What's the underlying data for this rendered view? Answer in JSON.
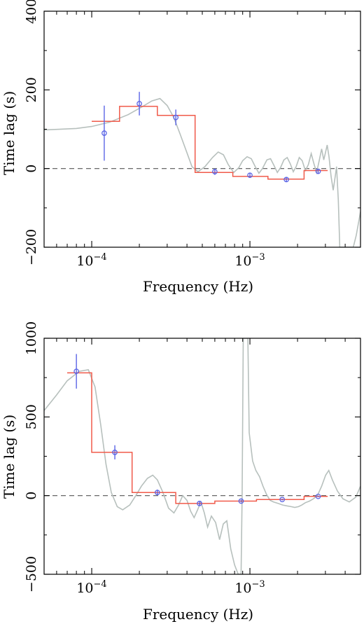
{
  "chart_data": [
    {
      "type": "line",
      "xlabel": "Frequency (Hz)",
      "ylabel": "Time lag (s)",
      "xscale": "log",
      "xlim": [
        5e-05,
        0.005
      ],
      "ylim": [
        -200,
        400
      ],
      "xticks": [
        {
          "value": 0.0001,
          "base": "10",
          "exp": "−4"
        },
        {
          "value": 0.001,
          "base": "10",
          "exp": "−3"
        }
      ],
      "yticks": [
        {
          "value": -200,
          "label": "−200"
        },
        {
          "value": 0,
          "label": "0"
        },
        {
          "value": 200,
          "label": "200"
        },
        {
          "value": 400,
          "label": "400"
        }
      ],
      "zero_line": true,
      "colors": {
        "model": "#b7c0bd",
        "step": "#f05a4a",
        "data": "#5a64e6",
        "zero": "#555555"
      },
      "model_curve": [
        {
          "x": 5e-05,
          "y": 98
        },
        {
          "x": 8e-05,
          "y": 102
        },
        {
          "x": 0.0001,
          "y": 107
        },
        {
          "x": 0.00013,
          "y": 118
        },
        {
          "x": 0.00017,
          "y": 137
        },
        {
          "x": 0.00021,
          "y": 158
        },
        {
          "x": 0.00024,
          "y": 172
        },
        {
          "x": 0.00027,
          "y": 178
        },
        {
          "x": 0.0003,
          "y": 160
        },
        {
          "x": 0.00033,
          "y": 130
        },
        {
          "x": 0.00036,
          "y": 90
        },
        {
          "x": 0.0004,
          "y": 40
        },
        {
          "x": 0.00043,
          "y": 5
        },
        {
          "x": 0.00047,
          "y": -8
        },
        {
          "x": 0.00052,
          "y": 5
        },
        {
          "x": 0.00058,
          "y": 28
        },
        {
          "x": 0.00063,
          "y": 42
        },
        {
          "x": 0.00068,
          "y": 35
        },
        {
          "x": 0.00073,
          "y": 10
        },
        {
          "x": 0.00079,
          "y": -10
        },
        {
          "x": 0.00085,
          "y": 2
        },
        {
          "x": 0.0009,
          "y": 20
        },
        {
          "x": 0.00096,
          "y": 30
        },
        {
          "x": 0.00102,
          "y": 25
        },
        {
          "x": 0.00108,
          "y": 5
        },
        {
          "x": 0.00114,
          "y": -12
        },
        {
          "x": 0.0012,
          "y": 0
        },
        {
          "x": 0.00128,
          "y": 22
        },
        {
          "x": 0.00135,
          "y": 25
        },
        {
          "x": 0.00142,
          "y": 8
        },
        {
          "x": 0.00149,
          "y": -10
        },
        {
          "x": 0.00156,
          "y": 2
        },
        {
          "x": 0.00164,
          "y": 22
        },
        {
          "x": 0.00172,
          "y": 28
        },
        {
          "x": 0.0018,
          "y": 12
        },
        {
          "x": 0.00188,
          "y": -8
        },
        {
          "x": 0.00196,
          "y": 5
        },
        {
          "x": 0.00205,
          "y": 28
        },
        {
          "x": 0.00214,
          "y": 20
        },
        {
          "x": 0.00224,
          "y": -5
        },
        {
          "x": 0.00234,
          "y": 10
        },
        {
          "x": 0.00244,
          "y": 38
        },
        {
          "x": 0.00254,
          "y": 12
        },
        {
          "x": 0.00264,
          "y": -10
        },
        {
          "x": 0.00274,
          "y": 20
        },
        {
          "x": 0.00284,
          "y": 50
        },
        {
          "x": 0.00293,
          "y": 22
        },
        {
          "x": 0.003,
          "y": 40
        },
        {
          "x": 0.00308,
          "y": 60
        },
        {
          "x": 0.00316,
          "y": 30
        },
        {
          "x": 0.00326,
          "y": -20
        },
        {
          "x": 0.00336,
          "y": -55
        },
        {
          "x": 0.00346,
          "y": -20
        },
        {
          "x": 0.00353,
          "y": 5
        },
        {
          "x": 0.00362,
          "y": -80
        },
        {
          "x": 0.0037,
          "y": -200
        },
        {
          "x": 0.0045,
          "y": -200
        },
        {
          "x": 0.0047,
          "y": -170
        },
        {
          "x": 0.005,
          "y": -110
        }
      ],
      "step_function": [
        {
          "x0": 0.0001,
          "x1": 0.00015,
          "y": 120
        },
        {
          "x0": 0.00015,
          "x1": 0.00026,
          "y": 158
        },
        {
          "x0": 0.00026,
          "x1": 0.00045,
          "y": 135
        },
        {
          "x0": 0.00045,
          "x1": 0.00078,
          "y": -10
        },
        {
          "x0": 0.00078,
          "x1": 0.0013,
          "y": -20
        },
        {
          "x0": 0.0013,
          "x1": 0.0022,
          "y": -27
        },
        {
          "x0": 0.0022,
          "x1": 0.0031,
          "y": -5
        }
      ],
      "data_points": [
        {
          "x": 0.00012,
          "y": 90,
          "err": 70
        },
        {
          "x": 0.0002,
          "y": 165,
          "err": 30
        },
        {
          "x": 0.00034,
          "y": 130,
          "err": 20
        },
        {
          "x": 0.0006,
          "y": -8,
          "err": 8
        },
        {
          "x": 0.001,
          "y": -17,
          "err": 5
        },
        {
          "x": 0.0017,
          "y": -28,
          "err": 5
        },
        {
          "x": 0.0027,
          "y": -7,
          "err": 5
        }
      ]
    },
    {
      "type": "line",
      "xlabel": "Frequency (Hz)",
      "ylabel": "Time lag (s)",
      "xscale": "log",
      "xlim": [
        5e-05,
        0.005
      ],
      "ylim": [
        -500,
        1000
      ],
      "xticks": [
        {
          "value": 0.0001,
          "base": "10",
          "exp": "−4"
        },
        {
          "value": 0.001,
          "base": "10",
          "exp": "−3"
        }
      ],
      "yticks": [
        {
          "value": -500,
          "label": "−500"
        },
        {
          "value": 0,
          "label": "0"
        },
        {
          "value": 500,
          "label": "500"
        },
        {
          "value": 1000,
          "label": "1000"
        }
      ],
      "zero_line": true,
      "colors": {
        "model": "#b7c0bd",
        "step": "#f05a4a",
        "data": "#5a64e6",
        "zero": "#555555"
      },
      "model_curve": [
        {
          "x": 5e-05,
          "y": 540
        },
        {
          "x": 6e-05,
          "y": 640
        },
        {
          "x": 7e-05,
          "y": 730
        },
        {
          "x": 8.33e-05,
          "y": 790
        },
        {
          "x": 9.52e-05,
          "y": 800
        },
        {
          "x": 0.000105,
          "y": 690
        },
        {
          "x": 0.000114,
          "y": 450
        },
        {
          "x": 0.000123,
          "y": 200
        },
        {
          "x": 0.000133,
          "y": 20
        },
        {
          "x": 0.000145,
          "y": -70
        },
        {
          "x": 0.000157,
          "y": -90
        },
        {
          "x": 0.000174,
          "y": -60
        },
        {
          "x": 0.00019,
          "y": 0
        },
        {
          "x": 0.000206,
          "y": 60
        },
        {
          "x": 0.000225,
          "y": 110
        },
        {
          "x": 0.000243,
          "y": 130
        },
        {
          "x": 0.00026,
          "y": 100
        },
        {
          "x": 0.000282,
          "y": 20
        },
        {
          "x": 0.000306,
          "y": -80
        },
        {
          "x": 0.000331,
          "y": -110
        },
        {
          "x": 0.000354,
          "y": -60
        },
        {
          "x": 0.000376,
          "y": 0
        },
        {
          "x": 0.0004,
          "y": -30
        },
        {
          "x": 0.000422,
          "y": -100
        },
        {
          "x": 0.000444,
          "y": -140
        },
        {
          "x": 0.000467,
          "y": -90
        },
        {
          "x": 0.00049,
          "y": -40
        },
        {
          "x": 0.000515,
          "y": -110
        },
        {
          "x": 0.00054,
          "y": -200
        },
        {
          "x": 0.000571,
          "y": -130
        },
        {
          "x": 0.000607,
          "y": -170
        },
        {
          "x": 0.000643,
          "y": -280
        },
        {
          "x": 0.000679,
          "y": -180
        },
        {
          "x": 0.000714,
          "y": -160
        },
        {
          "x": 0.000757,
          "y": -340
        },
        {
          "x": 0.0008,
          "y": -440
        },
        {
          "x": 0.000843,
          "y": -500
        },
        {
          "x": 0.000879,
          "y": -500
        },
        {
          "x": 0.000893,
          "y": 0
        },
        {
          "x": 0.000907,
          "y": 1000
        },
        {
          "x": 0.000971,
          "y": 1000
        },
        {
          "x": 0.00099,
          "y": 400
        },
        {
          "x": 0.00104,
          "y": 220
        },
        {
          "x": 0.00109,
          "y": 160
        },
        {
          "x": 0.00115,
          "y": 120
        },
        {
          "x": 0.00121,
          "y": 60
        },
        {
          "x": 0.00127,
          "y": 10
        },
        {
          "x": 0.00134,
          "y": -30
        },
        {
          "x": 0.00141,
          "y": -40
        },
        {
          "x": 0.00151,
          "y": -50
        },
        {
          "x": 0.00161,
          "y": -60
        },
        {
          "x": 0.00171,
          "y": -65
        },
        {
          "x": 0.00182,
          "y": -70
        },
        {
          "x": 0.00192,
          "y": -75
        },
        {
          "x": 0.00203,
          "y": -70
        },
        {
          "x": 0.00213,
          "y": -60
        },
        {
          "x": 0.00224,
          "y": -45
        },
        {
          "x": 0.00238,
          "y": -35
        },
        {
          "x": 0.00252,
          "y": -20
        },
        {
          "x": 0.00267,
          "y": 0
        },
        {
          "x": 0.00284,
          "y": 60
        },
        {
          "x": 0.00301,
          "y": 130
        },
        {
          "x": 0.00315,
          "y": 160
        },
        {
          "x": 0.00332,
          "y": 100
        },
        {
          "x": 0.00357,
          "y": 30
        },
        {
          "x": 0.00387,
          "y": -20
        },
        {
          "x": 0.00425,
          "y": -40
        },
        {
          "x": 0.00467,
          "y": -10
        },
        {
          "x": 0.005,
          "y": 60
        }
      ],
      "step_function": [
        {
          "x0": 7e-05,
          "x1": 0.0001,
          "y": 780
        },
        {
          "x0": 0.0001,
          "x1": 0.00018,
          "y": 275
        },
        {
          "x0": 0.00018,
          "x1": 0.00034,
          "y": 20
        },
        {
          "x0": 0.00034,
          "x1": 0.0006,
          "y": -50
        },
        {
          "x0": 0.0006,
          "x1": 0.0011,
          "y": -35
        },
        {
          "x0": 0.0011,
          "x1": 0.0022,
          "y": -25
        },
        {
          "x0": 0.0022,
          "x1": 0.0031,
          "y": -5
        }
      ],
      "data_points": [
        {
          "x": 8e-05,
          "y": 790,
          "err": 110
        },
        {
          "x": 0.00014,
          "y": 275,
          "err": 45
        },
        {
          "x": 0.00026,
          "y": 20,
          "err": 18
        },
        {
          "x": 0.00048,
          "y": -50,
          "err": 12
        },
        {
          "x": 0.00088,
          "y": -35,
          "err": 8
        },
        {
          "x": 0.0016,
          "y": -25,
          "err": 6
        },
        {
          "x": 0.0027,
          "y": -5,
          "err": 5
        }
      ]
    }
  ]
}
